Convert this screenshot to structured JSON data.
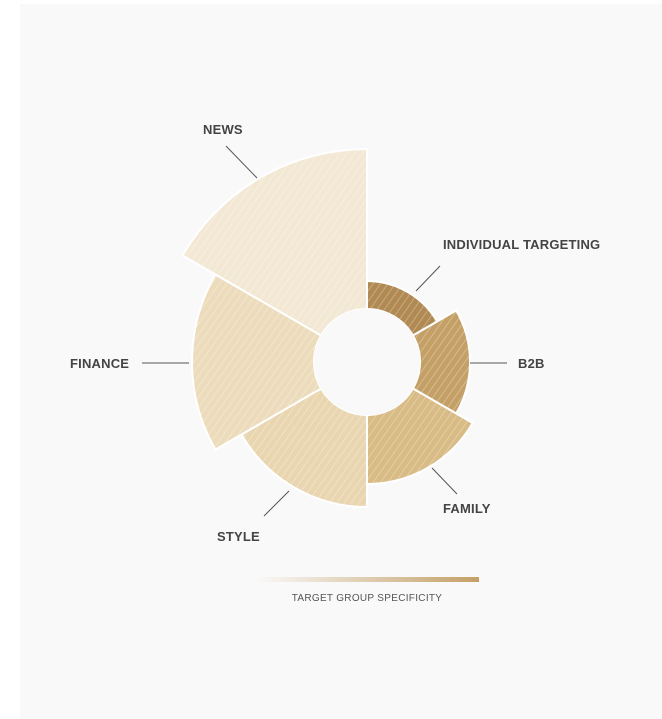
{
  "chart_data": {
    "type": "polar-area",
    "segments": [
      {
        "label": "INDIVIDUAL TARGETING",
        "color": "#b08a52"
      },
      {
        "label": "B2B",
        "color": "#c4a066"
      },
      {
        "label": "FAMILY",
        "color": "#d8bb85"
      },
      {
        "label": "STYLE",
        "color": "#e9d6b0"
      },
      {
        "label": "FINANCE",
        "color": "#ecdcbc"
      },
      {
        "label": "NEWS",
        "color": "#f3e8d4"
      }
    ],
    "legend": {
      "label": "TARGET GROUP SPECIFICITY",
      "gradient_from": "#f9f9f9",
      "gradient_to": "#c4a066"
    }
  }
}
